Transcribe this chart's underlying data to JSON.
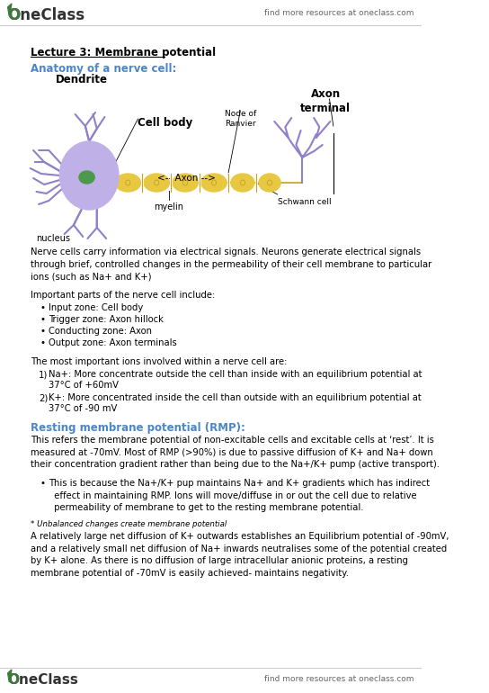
{
  "bg_color": "#ffffff",
  "header_right_text": "find more resources at oneclass.com",
  "footer_right_text": "find more resources at oneclass.com",
  "lecture_title": "Lecture 3: Membrane potential",
  "section1_heading": "Anatomy of a nerve cell:",
  "section1_color": "#4a86c8",
  "bullets1": [
    "Input zone: Cell body",
    "Trigger zone: Axon hillock",
    "Conducting zone: Axon",
    "Output zone: Axon terminals"
  ],
  "section2_heading": "Resting membrane potential (RMP):",
  "section2_color": "#4a86c8"
}
